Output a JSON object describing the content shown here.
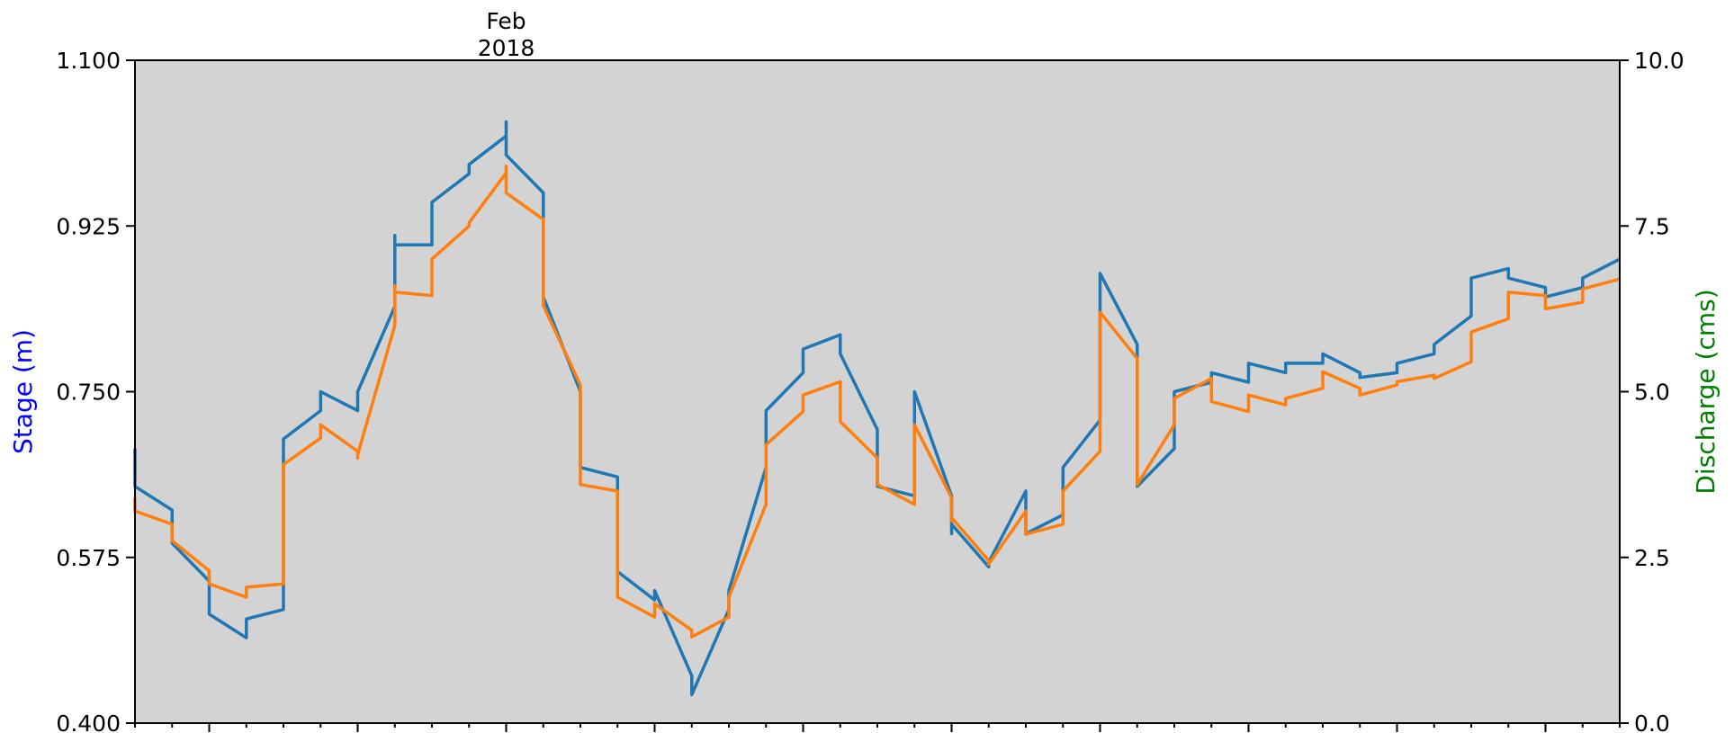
{
  "chart_data": {
    "type": "line",
    "title": "",
    "x_axis": {
      "start": "2018-01-04",
      "end": "2018-02-13",
      "labeled_tick": {
        "date": "2018-01-14",
        "label_line1": "Feb",
        "label_line2": "2018"
      },
      "tick_dates": [
        "2018-01-06",
        "2018-01-10",
        "2018-01-14",
        "2018-01-18",
        "2018-01-22",
        "2018-01-26",
        "2018-01-30",
        "2018-02-03",
        "2018-02-07",
        "2018-02-11"
      ]
    },
    "left_axis": {
      "label": "Stage (m)",
      "label_color": "#0000ff",
      "ylim": [
        0.4,
        1.1
      ],
      "ticks": [
        "0.400",
        "0.575",
        "0.750",
        "0.925",
        "1.100"
      ]
    },
    "right_axis": {
      "label": "Discharge (cms)",
      "label_color": "#008000",
      "ylim": [
        0.0,
        10.0
      ],
      "ticks": [
        "0.0",
        "2.5",
        "5.0",
        "7.5",
        "10.0"
      ]
    },
    "plot_background": "#d3d3d3",
    "series": [
      {
        "axis": "left",
        "color": "#1f77b4",
        "x": [
          "2018-01-04",
          "2018-01-04",
          "2018-01-05",
          "2018-01-05",
          "2018-01-06",
          "2018-01-06",
          "2018-01-07",
          "2018-01-07",
          "2018-01-07",
          "2018-01-08",
          "2018-01-08",
          "2018-01-08",
          "2018-01-09",
          "2018-01-09",
          "2018-01-10",
          "2018-01-10",
          "2018-01-10",
          "2018-01-11",
          "2018-01-11",
          "2018-01-11",
          "2018-01-12",
          "2018-01-12",
          "2018-01-12",
          "2018-01-13",
          "2018-01-13",
          "2018-01-14",
          "2018-01-14",
          "2018-01-14",
          "2018-01-15",
          "2018-01-15",
          "2018-01-16",
          "2018-01-16",
          "2018-01-17",
          "2018-01-17",
          "2018-01-18",
          "2018-01-18",
          "2018-01-19",
          "2018-01-19",
          "2018-01-20",
          "2018-01-20",
          "2018-01-21",
          "2018-01-21",
          "2018-01-22",
          "2018-01-22",
          "2018-01-22",
          "2018-01-23",
          "2018-01-23",
          "2018-01-24",
          "2018-01-24",
          "2018-01-25",
          "2018-01-25",
          "2018-01-26",
          "2018-01-26",
          "2018-01-26",
          "2018-01-27",
          "2018-01-27",
          "2018-01-28",
          "2018-01-28",
          "2018-01-29",
          "2018-01-29",
          "2018-01-30",
          "2018-01-30",
          "2018-01-30",
          "2018-01-31",
          "2018-01-31",
          "2018-01-31",
          "2018-02-01",
          "2018-02-01",
          "2018-02-02",
          "2018-02-02",
          "2018-02-03",
          "2018-02-03",
          "2018-02-04",
          "2018-02-04",
          "2018-02-05",
          "2018-02-05",
          "2018-02-06",
          "2018-02-06",
          "2018-02-07",
          "2018-02-07",
          "2018-02-08",
          "2018-02-08",
          "2018-02-09",
          "2018-02-09",
          "2018-02-10",
          "2018-02-10",
          "2018-02-11",
          "2018-02-11",
          "2018-02-12",
          "2018-02-12",
          "2018-02-13"
        ],
        "y": [
          0.69,
          0.65,
          0.625,
          0.59,
          0.55,
          0.515,
          0.49,
          0.5,
          0.51,
          0.52,
          0.52,
          0.7,
          0.73,
          0.75,
          0.73,
          0.74,
          0.75,
          0.84,
          0.915,
          0.905,
          0.905,
          0.92,
          0.95,
          0.98,
          0.99,
          1.02,
          1.035,
          1.0,
          0.96,
          0.85,
          0.75,
          0.67,
          0.66,
          0.56,
          0.53,
          0.54,
          0.45,
          0.43,
          0.52,
          0.54,
          0.67,
          0.73,
          0.77,
          0.785,
          0.795,
          0.81,
          0.79,
          0.71,
          0.65,
          0.64,
          0.75,
          0.64,
          0.6,
          0.61,
          0.565,
          0.57,
          0.645,
          0.6,
          0.62,
          0.67,
          0.72,
          0.85,
          0.875,
          0.8,
          0.74,
          0.65,
          0.69,
          0.75,
          0.76,
          0.77,
          0.76,
          0.78,
          0.77,
          0.78,
          0.78,
          0.79,
          0.77,
          0.765,
          0.77,
          0.78,
          0.79,
          0.8,
          0.83,
          0.87,
          0.88,
          0.87,
          0.86,
          0.85,
          0.86,
          0.87,
          0.89
        ]
      },
      {
        "axis": "left",
        "color": "#ff7f0e",
        "x": [
          "2018-01-04",
          "2018-01-04",
          "2018-01-05",
          "2018-01-05",
          "2018-01-06",
          "2018-01-06",
          "2018-01-07",
          "2018-01-07",
          "2018-01-07",
          "2018-01-08",
          "2018-01-08",
          "2018-01-08",
          "2018-01-09",
          "2018-01-09",
          "2018-01-10",
          "2018-01-10",
          "2018-01-10",
          "2018-01-11",
          "2018-01-11",
          "2018-01-11",
          "2018-01-12",
          "2018-01-12",
          "2018-01-12",
          "2018-01-13",
          "2018-01-13",
          "2018-01-14",
          "2018-01-14",
          "2018-01-14",
          "2018-01-15",
          "2018-01-15",
          "2018-01-16",
          "2018-01-16",
          "2018-01-17",
          "2018-01-17",
          "2018-01-18",
          "2018-01-18",
          "2018-01-19",
          "2018-01-19",
          "2018-01-20",
          "2018-01-20",
          "2018-01-21",
          "2018-01-21",
          "2018-01-22",
          "2018-01-22",
          "2018-01-22",
          "2018-01-23",
          "2018-01-23",
          "2018-01-24",
          "2018-01-24",
          "2018-01-25",
          "2018-01-25",
          "2018-01-26",
          "2018-01-26",
          "2018-01-26",
          "2018-01-27",
          "2018-01-27",
          "2018-01-28",
          "2018-01-28",
          "2018-01-29",
          "2018-01-29",
          "2018-01-30",
          "2018-01-30",
          "2018-01-30",
          "2018-01-31",
          "2018-01-31",
          "2018-01-31",
          "2018-02-01",
          "2018-02-01",
          "2018-02-02",
          "2018-02-02",
          "2018-02-03",
          "2018-02-03",
          "2018-02-04",
          "2018-02-04",
          "2018-02-05",
          "2018-02-05",
          "2018-02-06",
          "2018-02-06",
          "2018-02-07",
          "2018-02-07",
          "2018-02-08",
          "2018-02-08",
          "2018-02-09",
          "2018-02-09",
          "2018-02-10",
          "2018-02-10",
          "2018-02-11",
          "2018-02-11",
          "2018-02-12",
          "2018-02-12",
          "2018-02-13"
        ],
        "y": [
          3.4,
          3.2,
          3.0,
          2.75,
          2.3,
          2.1,
          1.9,
          2.0,
          2.05,
          2.1,
          2.15,
          3.9,
          4.3,
          4.5,
          4.1,
          4.0,
          4.05,
          6.0,
          6.6,
          6.5,
          6.45,
          6.7,
          7.0,
          7.5,
          7.55,
          8.3,
          8.4,
          8.0,
          7.6,
          6.3,
          5.1,
          3.6,
          3.5,
          1.9,
          1.6,
          1.8,
          1.4,
          1.3,
          1.6,
          1.9,
          3.3,
          4.2,
          4.7,
          4.85,
          4.95,
          5.15,
          4.55,
          4.0,
          3.6,
          3.3,
          4.5,
          3.4,
          3.05,
          3.1,
          2.45,
          2.4,
          3.2,
          2.85,
          3.0,
          3.5,
          4.1,
          5.95,
          6.2,
          5.5,
          4.5,
          3.6,
          4.5,
          4.9,
          5.2,
          4.85,
          4.7,
          4.95,
          4.8,
          4.9,
          5.05,
          5.3,
          5.05,
          4.95,
          5.1,
          5.15,
          5.25,
          5.2,
          5.45,
          5.9,
          6.1,
          6.5,
          6.45,
          6.25,
          6.35,
          6.55,
          6.7
        ]
      }
    ]
  }
}
